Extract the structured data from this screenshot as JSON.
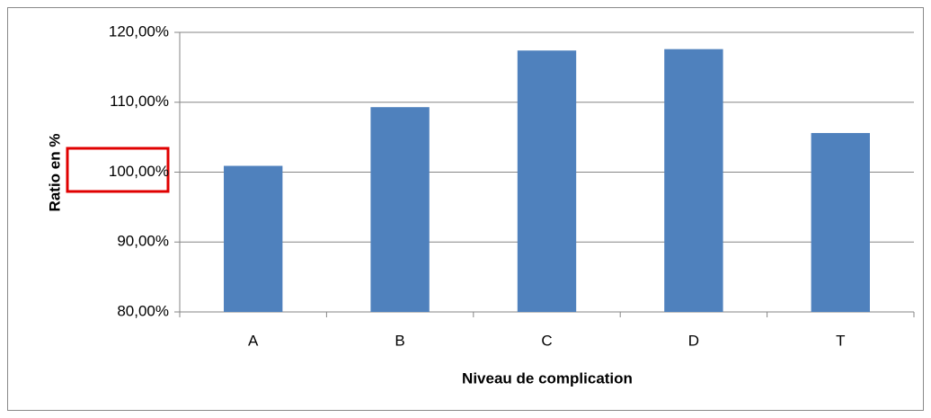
{
  "chart_data": {
    "type": "bar",
    "categories": [
      "A",
      "B",
      "C",
      "D",
      "T"
    ],
    "values": [
      100.9,
      109.3,
      117.4,
      117.6,
      105.6
    ],
    "color": "#4f81bd",
    "ylim": [
      80,
      120
    ],
    "yticks": [
      {
        "value": 80,
        "label": "80,00%"
      },
      {
        "value": 90,
        "label": "90,00%"
      },
      {
        "value": 100,
        "label": "100,00%"
      },
      {
        "value": 110,
        "label": "110,00%"
      },
      {
        "value": 120,
        "label": "120,00%"
      }
    ],
    "grid": true,
    "x_label": "Niveau de complication",
    "y_label": "Ratio en  %"
  }
}
